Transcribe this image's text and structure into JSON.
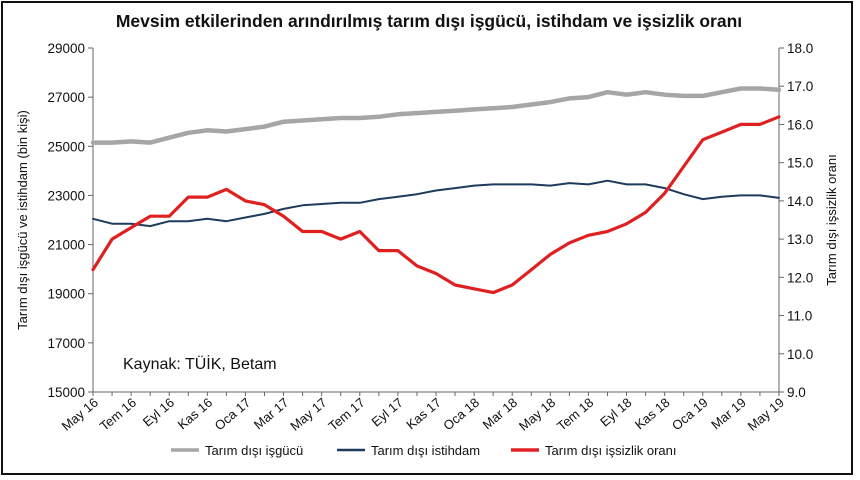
{
  "title": "Mevsim etkilerinden arındırılmış tarım dışı işgücü, istihdam ve işsizlik oranı",
  "source_note": "Kaynak: TÜİK, Betam",
  "chart_data": {
    "type": "line",
    "title": "Mevsim etkilerinden arındırılmış tarım dışı işgücü, istihdam ve işsizlik oranı",
    "ylabel_left": "Tarım dışı işgücü ve istihdam (bin kişi)",
    "ylabel_right": "Tarım dışı işsizlik oranı",
    "ylim_left": [
      15000,
      29000
    ],
    "ylim_right": [
      9.0,
      18.0
    ],
    "yticks_left": [
      "15000",
      "17000",
      "19000",
      "21000",
      "23000",
      "25000",
      "27000",
      "29000"
    ],
    "yticks_right": [
      "9.0",
      "10.0",
      "11.0",
      "12.0",
      "13.0",
      "14.0",
      "15.0",
      "16.0",
      "17.0",
      "18.0"
    ],
    "x": [
      "May 16",
      "Haz 16",
      "Tem 16",
      "Ağu 16",
      "Eyl 16",
      "Eki 16",
      "Kas 16",
      "Ara 16",
      "Oca 17",
      "Şub 17",
      "Mar 17",
      "Nis 17",
      "May 17",
      "Haz 17",
      "Tem 17",
      "Ağu 17",
      "Eyl 17",
      "Eki 17",
      "Kas 17",
      "Ara 17",
      "Oca 18",
      "Şub 18",
      "Mar 18",
      "Nis 18",
      "May 18",
      "Haz 18",
      "Tem 18",
      "Ağu 18",
      "Eyl 18",
      "Eki 18",
      "Kas 18",
      "Ara 18",
      "Oca 19",
      "Şub 19",
      "Mar 19",
      "Nis 19",
      "May 19"
    ],
    "xtick_labels": [
      "May 16",
      "Tem 16",
      "Eyl 16",
      "Kas 16",
      "Oca 17",
      "Mar 17",
      "May 17",
      "Tem 17",
      "Eyl 17",
      "Kas 17",
      "Oca 18",
      "Mar 18",
      "May 18",
      "Tem 18",
      "Eyl 18",
      "Kas 18",
      "Oca 19",
      "Mar 19",
      "May 19"
    ],
    "legend_position": "bottom",
    "grid": false,
    "series": [
      {
        "name": "Tarım dışı işgücü",
        "axis": "left",
        "color": "#a6a6a6",
        "values": [
          25150,
          25150,
          25200,
          25150,
          25350,
          25550,
          25650,
          25600,
          25700,
          25800,
          26000,
          26050,
          26100,
          26150,
          26150,
          26200,
          26300,
          26350,
          26400,
          26450,
          26500,
          26550,
          26600,
          26700,
          26800,
          26950,
          27000,
          27200,
          27100,
          27200,
          27100,
          27050,
          27050,
          27200,
          27350,
          27350,
          27300
        ]
      },
      {
        "name": "Tarım dışı istihdam",
        "axis": "left",
        "color": "#1f3b5c",
        "values": [
          22050,
          21850,
          21850,
          21750,
          21950,
          21950,
          22050,
          21950,
          22100,
          22250,
          22450,
          22600,
          22650,
          22700,
          22700,
          22850,
          22950,
          23050,
          23200,
          23300,
          23400,
          23450,
          23450,
          23450,
          23400,
          23500,
          23450,
          23600,
          23450,
          23450,
          23300,
          23050,
          22850,
          22950,
          23000,
          23000,
          22900
        ]
      },
      {
        "name": "Tarım dışı işsizlik oranı",
        "axis": "right",
        "color": "#e02020",
        "values": [
          12.2,
          13.0,
          13.3,
          13.6,
          13.6,
          14.1,
          14.1,
          14.3,
          14.0,
          13.9,
          13.6,
          13.2,
          13.2,
          13.0,
          13.2,
          12.7,
          12.7,
          12.3,
          12.1,
          11.8,
          11.7,
          11.6,
          11.8,
          12.2,
          12.6,
          12.9,
          13.1,
          13.2,
          13.4,
          13.7,
          14.2,
          14.9,
          15.6,
          15.8,
          16.0,
          16.0,
          16.2
        ]
      }
    ]
  }
}
